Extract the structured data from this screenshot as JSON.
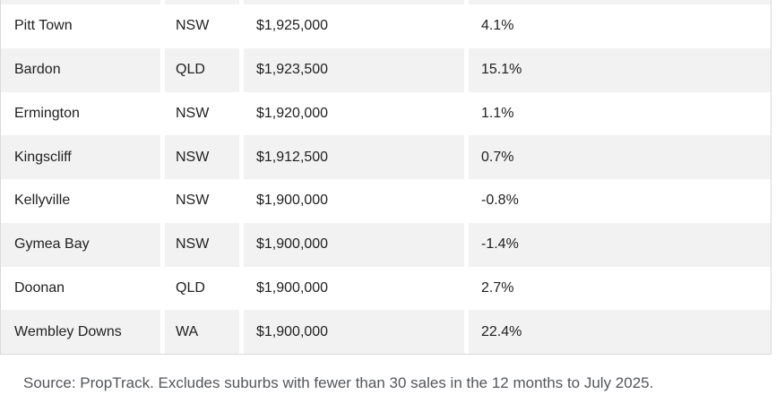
{
  "chart_data": {
    "type": "table",
    "columns": [
      "suburb",
      "state",
      "median_price",
      "annual_growth_pct"
    ],
    "rows": [
      [
        "Pitt Town",
        "NSW",
        "$1,925,000",
        "4.1%"
      ],
      [
        "Bardon",
        "QLD",
        "$1,923,500",
        "15.1%"
      ],
      [
        "Ermington",
        "NSW",
        "$1,920,000",
        "1.1%"
      ],
      [
        "Kingscliff",
        "NSW",
        "$1,912,500",
        "0.7%"
      ],
      [
        "Kellyville",
        "NSW",
        "$1,900,000",
        "-0.8%"
      ],
      [
        "Gymea Bay",
        "NSW",
        "$1,900,000",
        "-1.4%"
      ],
      [
        "Doonan",
        "QLD",
        "$1,900,000",
        "2.7%"
      ],
      [
        "Wembley Downs",
        "WA",
        "$1,900,000",
        "22.4%"
      ]
    ],
    "caption": "Source: PropTrack. Excludes suburbs with fewer than 30 sales in the 12 months to July 2025.",
    "layout_hints": {
      "striped": true,
      "first_visible_row_bg": "white",
      "truncated_row_at_top": true,
      "grid": "column gaps only, no header visible"
    }
  },
  "footer": {
    "source_text": "Source: PropTrack. Excludes suburbs with fewer than 30 sales in the 12 months to July 2025."
  },
  "colors": {
    "row_alt_bg": "#f2f2f2",
    "row_bg": "#ffffff",
    "table_border": "#d9d9d9",
    "cell_text": "#212121",
    "source_text": "#54565a"
  }
}
